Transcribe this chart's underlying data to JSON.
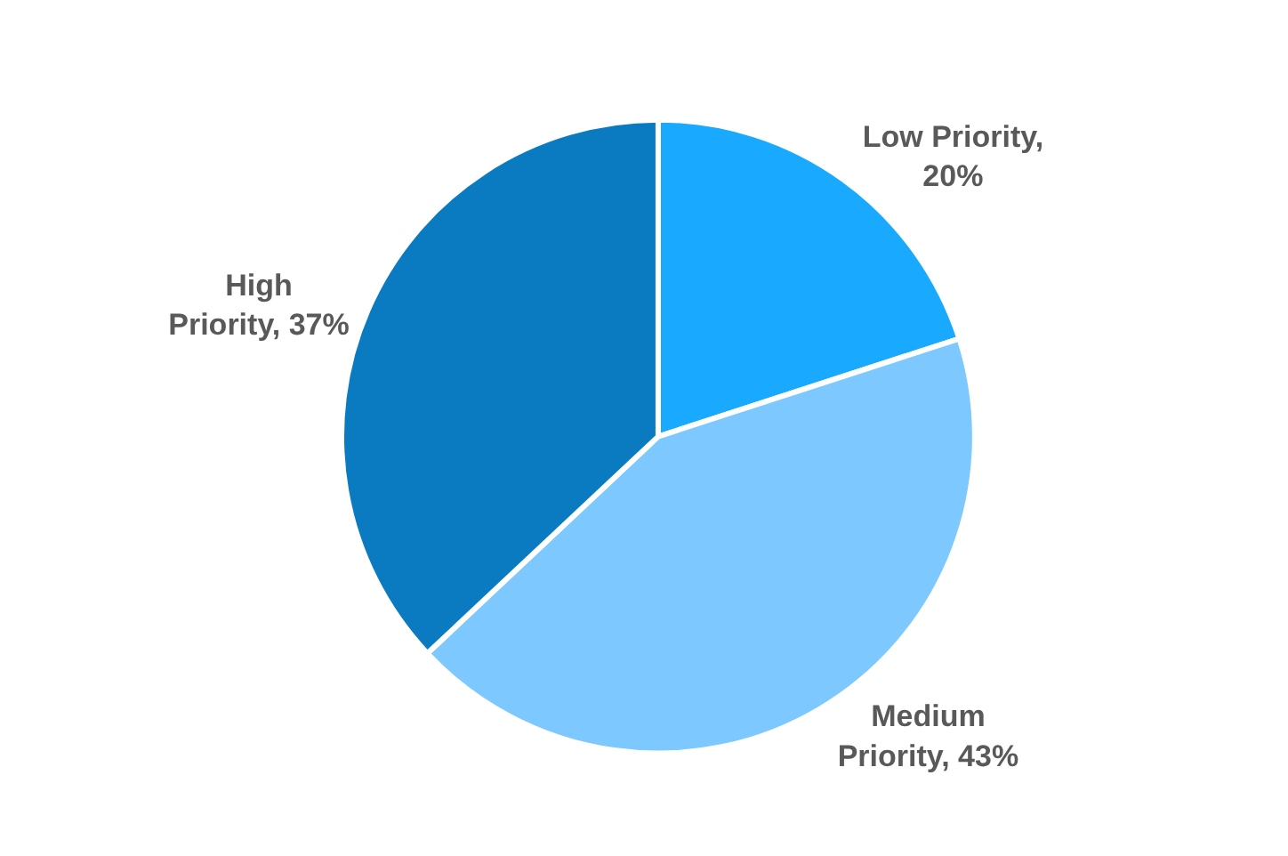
{
  "chart_data": {
    "type": "pie",
    "categories": [
      "Low Priority",
      "Medium Priority",
      "High Priority"
    ],
    "values": [
      20,
      43,
      37
    ],
    "colors": [
      "#19a9ff",
      "#7dc8ff",
      "#0b7bc1"
    ],
    "value_labels": [
      ", 20%",
      ", 43%",
      ", 37%"
    ],
    "legend": false
  }
}
